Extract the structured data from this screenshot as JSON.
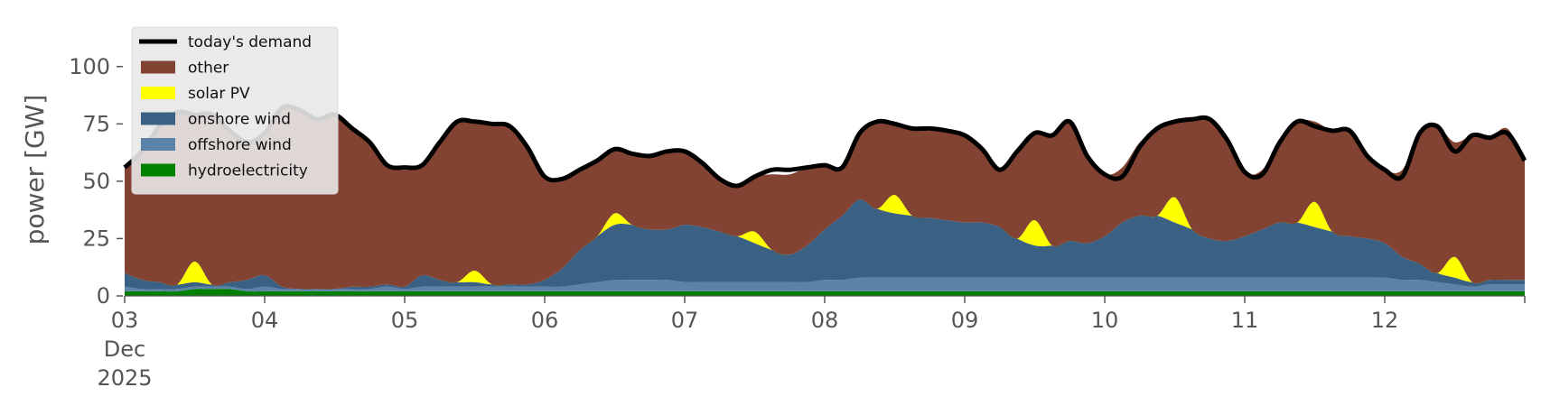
{
  "chart_data": {
    "type": "area",
    "ylabel": "power [GW]",
    "xlabel": "",
    "ylim": [
      0,
      118
    ],
    "yticks": [
      0,
      25,
      50,
      75,
      100
    ],
    "xrange": [
      "2025-12-03T00:00",
      "2025-12-13T00:00"
    ],
    "x_tick_labels": [
      "03",
      "04",
      "05",
      "06",
      "07",
      "08",
      "09",
      "10",
      "11",
      "12"
    ],
    "x_tick_month_label": "Dec",
    "x_tick_year_label": "2025",
    "grid": false,
    "legend_position": "top-left",
    "x": [
      "2025-12-03T00:00",
      "2025-12-03T03:00",
      "2025-12-03T06:00",
      "2025-12-03T09:00",
      "2025-12-03T12:00",
      "2025-12-03T15:00",
      "2025-12-03T18:00",
      "2025-12-03T21:00",
      "2025-12-04T00:00",
      "2025-12-04T03:00",
      "2025-12-04T06:00",
      "2025-12-04T09:00",
      "2025-12-04T12:00",
      "2025-12-04T15:00",
      "2025-12-04T18:00",
      "2025-12-04T21:00",
      "2025-12-05T00:00",
      "2025-12-05T03:00",
      "2025-12-05T06:00",
      "2025-12-05T09:00",
      "2025-12-05T12:00",
      "2025-12-05T15:00",
      "2025-12-05T18:00",
      "2025-12-05T21:00",
      "2025-12-06T00:00",
      "2025-12-06T03:00",
      "2025-12-06T06:00",
      "2025-12-06T09:00",
      "2025-12-06T12:00",
      "2025-12-06T15:00",
      "2025-12-06T18:00",
      "2025-12-06T21:00",
      "2025-12-07T00:00",
      "2025-12-07T03:00",
      "2025-12-07T06:00",
      "2025-12-07T09:00",
      "2025-12-07T12:00",
      "2025-12-07T15:00",
      "2025-12-07T18:00",
      "2025-12-07T21:00",
      "2025-12-08T00:00",
      "2025-12-08T03:00",
      "2025-12-08T06:00",
      "2025-12-08T09:00",
      "2025-12-08T12:00",
      "2025-12-08T15:00",
      "2025-12-08T18:00",
      "2025-12-08T21:00",
      "2025-12-09T00:00",
      "2025-12-09T03:00",
      "2025-12-09T06:00",
      "2025-12-09T09:00",
      "2025-12-09T12:00",
      "2025-12-09T15:00",
      "2025-12-09T18:00",
      "2025-12-09T21:00",
      "2025-12-10T00:00",
      "2025-12-10T03:00",
      "2025-12-10T06:00",
      "2025-12-10T09:00",
      "2025-12-10T12:00",
      "2025-12-10T15:00",
      "2025-12-10T18:00",
      "2025-12-10T21:00",
      "2025-12-11T00:00",
      "2025-12-11T03:00",
      "2025-12-11T06:00",
      "2025-12-11T09:00",
      "2025-12-11T12:00",
      "2025-12-11T15:00",
      "2025-12-11T18:00",
      "2025-12-11T21:00",
      "2025-12-12T00:00",
      "2025-12-12T03:00",
      "2025-12-12T06:00",
      "2025-12-12T09:00",
      "2025-12-12T12:00",
      "2025-12-12T15:00",
      "2025-12-12T18:00",
      "2025-12-12T21:00",
      "2025-12-13T00:00"
    ],
    "stack_order_bottom_to_top": [
      "hydroelectricity",
      "offshore wind",
      "onshore wind",
      "solar PV",
      "other"
    ],
    "series": [
      {
        "name": "hydroelectricity",
        "color": "#008000",
        "values": [
          2,
          2,
          2,
          2,
          3,
          3,
          3,
          2,
          2,
          2,
          2,
          2,
          2,
          2,
          2,
          2,
          2,
          2,
          2,
          2,
          2,
          2,
          2,
          2,
          2,
          2,
          2,
          2,
          2,
          2,
          2,
          2,
          2,
          2,
          2,
          2,
          2,
          2,
          2,
          2,
          2,
          2,
          2,
          2,
          2,
          2,
          2,
          2,
          2,
          2,
          2,
          2,
          2,
          2,
          2,
          2,
          2,
          2,
          2,
          2,
          2,
          2,
          2,
          2,
          2,
          2,
          2,
          2,
          2,
          2,
          2,
          2,
          2,
          2,
          2,
          2,
          2,
          2,
          2,
          2,
          2
        ]
      },
      {
        "name": "offshore wind",
        "color": "#5b83a8",
        "values": [
          2,
          1,
          1,
          1,
          1,
          1,
          1,
          1,
          2,
          1,
          1,
          1,
          1,
          1,
          1,
          2,
          1,
          2,
          2,
          2,
          2,
          2,
          2,
          2,
          2,
          2,
          3,
          4,
          5,
          5,
          5,
          5,
          4,
          4,
          4,
          4,
          4,
          4,
          4,
          4,
          5,
          5,
          6,
          6,
          6,
          6,
          6,
          6,
          6,
          6,
          6,
          6,
          6,
          6,
          6,
          6,
          6,
          6,
          6,
          6,
          6,
          6,
          6,
          6,
          6,
          6,
          6,
          6,
          6,
          6,
          6,
          6,
          6,
          5,
          5,
          4,
          3,
          2,
          3,
          3,
          3
        ]
      },
      {
        "name": "onshore wind",
        "color": "#3a6183",
        "values": [
          6,
          4,
          3,
          2,
          2,
          1,
          2,
          4,
          5,
          1,
          0,
          0,
          0,
          1,
          1,
          1,
          1,
          5,
          3,
          2,
          2,
          1,
          1,
          1,
          3,
          8,
          15,
          20,
          24,
          24,
          22,
          22,
          25,
          24,
          22,
          20,
          17,
          14,
          12,
          16,
          22,
          28,
          34,
          30,
          28,
          27,
          26,
          25,
          24,
          24,
          22,
          17,
          14,
          14,
          16,
          15,
          18,
          24,
          27,
          27,
          24,
          21,
          17,
          16,
          18,
          21,
          24,
          24,
          22,
          20,
          18,
          17,
          15,
          10,
          7,
          4,
          3,
          2,
          2,
          2,
          2
        ]
      },
      {
        "name": "solar PV",
        "color": "#ffff00",
        "values": [
          0,
          0,
          0,
          0,
          9,
          0,
          0,
          0,
          0,
          0,
          0,
          0,
          0,
          0,
          0,
          0,
          0,
          0,
          0,
          0,
          5,
          0,
          0,
          0,
          0,
          0,
          0,
          0,
          5,
          0,
          0,
          0,
          0,
          0,
          0,
          0,
          5,
          0,
          0,
          0,
          0,
          0,
          0,
          0,
          8,
          0,
          0,
          0,
          0,
          0,
          0,
          0,
          11,
          0,
          0,
          0,
          0,
          0,
          0,
          0,
          11,
          0,
          0,
          0,
          0,
          0,
          0,
          0,
          11,
          0,
          0,
          0,
          0,
          0,
          0,
          0,
          9,
          0,
          0,
          0,
          0
        ]
      },
      {
        "name": "other",
        "color": "#824333",
        "values": [
          46,
          56,
          68,
          75,
          64,
          75,
          66,
          60,
          62,
          78,
          78,
          74,
          76,
          69,
          63,
          52,
          51,
          48,
          60,
          70,
          65,
          70,
          69,
          60,
          45,
          39,
          35,
          33,
          28,
          31,
          32,
          34,
          32,
          28,
          23,
          22,
          24,
          33,
          35,
          34,
          28,
          21,
          29,
          38,
          32,
          38,
          38,
          39,
          38,
          32,
          25,
          38,
          38,
          48,
          52,
          38,
          27,
          24,
          32,
          38,
          33,
          48,
          52,
          44,
          28,
          26,
          35,
          44,
          35,
          44,
          46,
          36,
          32,
          38,
          57,
          64,
          50,
          64,
          62,
          66,
          52
        ]
      },
      {
        "name": "today's demand",
        "color": "#000000",
        "kind": "line",
        "values": [
          56,
          63,
          74,
          80,
          79,
          79,
          72,
          67,
          71,
          82,
          81,
          77,
          79,
          73,
          67,
          57,
          56,
          57,
          67,
          76,
          76,
          75,
          74,
          65,
          52,
          51,
          55,
          59,
          64,
          62,
          61,
          63,
          63,
          58,
          51,
          48,
          52,
          55,
          55,
          56,
          57,
          56,
          71,
          76,
          75,
          73,
          73,
          72,
          70,
          64,
          55,
          63,
          71,
          70,
          76,
          61,
          53,
          52,
          65,
          73,
          76,
          77,
          77,
          68,
          54,
          53,
          67,
          76,
          74,
          72,
          72,
          61,
          55,
          52,
          71,
          74,
          63,
          70,
          69,
          71,
          59
        ]
      }
    ]
  }
}
